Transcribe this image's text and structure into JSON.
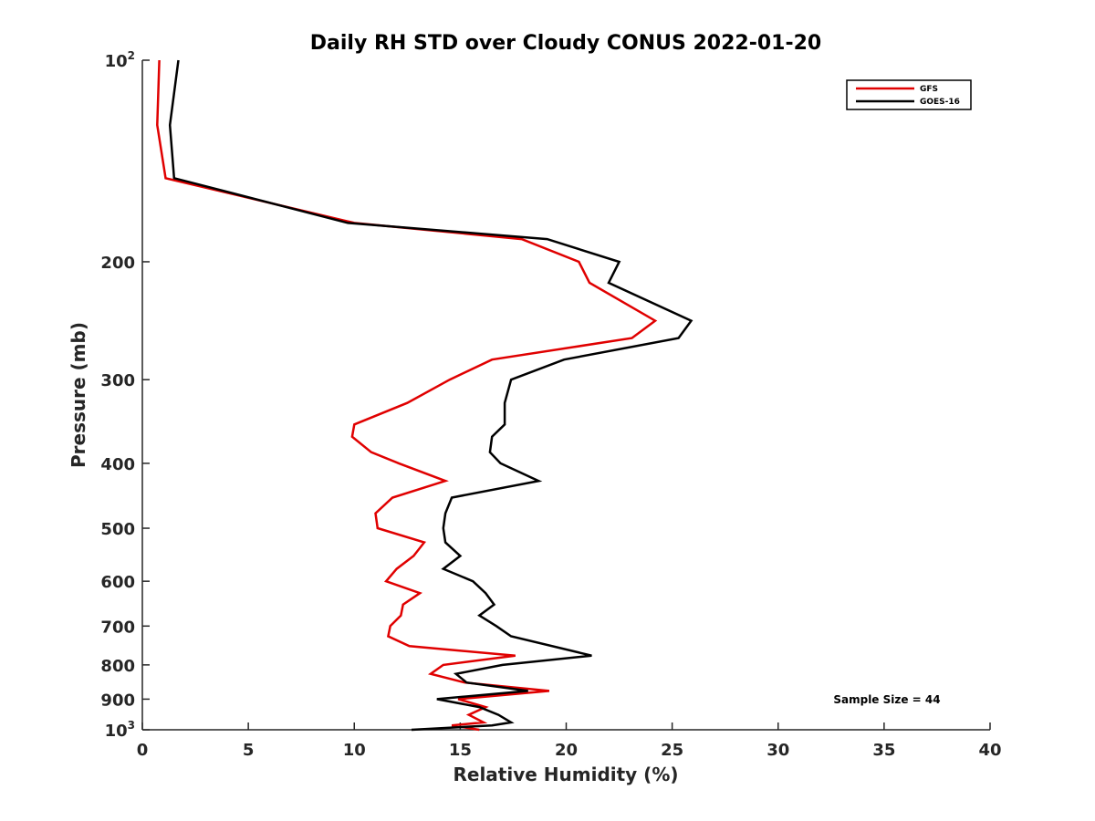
{
  "chart_data": {
    "type": "line",
    "title": "Daily RH STD over Cloudy CONUS 2022-01-20",
    "xlabel": "Relative Humidity (%)",
    "ylabel": "Pressure (mb)",
    "xlim": [
      0,
      40
    ],
    "ylim": [
      100,
      1000
    ],
    "y_scale": "log",
    "y_reversed": true,
    "x_ticks": [
      0,
      5,
      10,
      15,
      20,
      25,
      30,
      35,
      40
    ],
    "y_ticks": [
      {
        "value": 100,
        "base": "10",
        "exp": "2"
      },
      {
        "value": 200,
        "label": "200"
      },
      {
        "value": 300,
        "label": "300"
      },
      {
        "value": 400,
        "label": "400"
      },
      {
        "value": 500,
        "label": "500"
      },
      {
        "value": 600,
        "label": "600"
      },
      {
        "value": 700,
        "label": "700"
      },
      {
        "value": 800,
        "label": "800"
      },
      {
        "value": 900,
        "label": "900"
      },
      {
        "value": 1000,
        "base": "10",
        "exp": "3"
      }
    ],
    "grid": false,
    "legend_position": "top-right",
    "annotation": "Sample Size = 44",
    "series": [
      {
        "name": "GFS",
        "color": "#e00000",
        "points": [
          [
            0.8,
            100
          ],
          [
            0.7,
            125
          ],
          [
            1.1,
            150
          ],
          [
            10,
            175
          ],
          [
            17.9,
            185
          ],
          [
            20.6,
            200
          ],
          [
            21.1,
            215
          ],
          [
            24.2,
            245
          ],
          [
            23.1,
            260
          ],
          [
            16.5,
            280
          ],
          [
            14.5,
            300
          ],
          [
            12.5,
            325
          ],
          [
            10,
            350
          ],
          [
            9.9,
            365
          ],
          [
            10.8,
            385
          ],
          [
            12.1,
            400
          ],
          [
            14.3,
            425
          ],
          [
            11.8,
            450
          ],
          [
            11,
            475
          ],
          [
            11.1,
            500
          ],
          [
            13.3,
            525
          ],
          [
            12.8,
            550
          ],
          [
            12,
            575
          ],
          [
            11.5,
            600
          ],
          [
            13.1,
            625
          ],
          [
            12.3,
            650
          ],
          [
            12.2,
            675
          ],
          [
            11.7,
            700
          ],
          [
            11.6,
            725
          ],
          [
            12.6,
            750
          ],
          [
            17.6,
            775
          ],
          [
            14.2,
            800
          ],
          [
            13.6,
            825
          ],
          [
            15.2,
            850
          ],
          [
            19.2,
            875
          ],
          [
            14.9,
            900
          ],
          [
            16.2,
            925
          ],
          [
            15.4,
            950
          ],
          [
            16.1,
            975
          ],
          [
            14.6,
            985
          ],
          [
            15.9,
            1000
          ]
        ]
      },
      {
        "name": "GOES-16",
        "color": "#000000",
        "points": [
          [
            1.7,
            100
          ],
          [
            1.3,
            125
          ],
          [
            1.5,
            150
          ],
          [
            9.7,
            175
          ],
          [
            19.1,
            185
          ],
          [
            22.5,
            200
          ],
          [
            22,
            215
          ],
          [
            25.9,
            245
          ],
          [
            25.3,
            260
          ],
          [
            19.9,
            280
          ],
          [
            17.4,
            300
          ],
          [
            17.1,
            325
          ],
          [
            17.1,
            350
          ],
          [
            16.5,
            365
          ],
          [
            16.4,
            385
          ],
          [
            16.9,
            400
          ],
          [
            18.7,
            425
          ],
          [
            14.6,
            450
          ],
          [
            14.3,
            475
          ],
          [
            14.2,
            500
          ],
          [
            14.3,
            525
          ],
          [
            15,
            550
          ],
          [
            14.2,
            575
          ],
          [
            15.6,
            600
          ],
          [
            16.2,
            625
          ],
          [
            16.6,
            650
          ],
          [
            15.9,
            675
          ],
          [
            16.7,
            700
          ],
          [
            17.4,
            725
          ],
          [
            21.2,
            775
          ],
          [
            17,
            800
          ],
          [
            14.8,
            825
          ],
          [
            15.3,
            850
          ],
          [
            18.2,
            875
          ],
          [
            13.9,
            900
          ],
          [
            15.9,
            925
          ],
          [
            16.8,
            950
          ],
          [
            17.4,
            975
          ],
          [
            16.5,
            985
          ],
          [
            12.7,
            1000
          ]
        ]
      }
    ]
  }
}
